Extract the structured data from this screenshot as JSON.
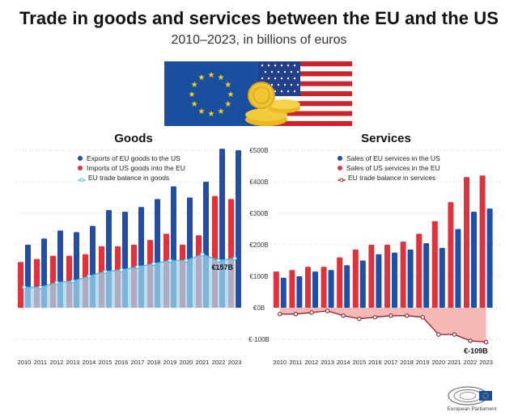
{
  "title": "Trade in goods and services between the EU and the US",
  "subtitle": "2010–2023, in billions of euros",
  "colors": {
    "exports_blue": "#1f4fa8",
    "imports_red": "#e0323c",
    "balance_goods": "#47b8de",
    "balance_services": "#8b1f24",
    "goods_area": "#9fd6ee",
    "services_area": "#f4a0a0"
  },
  "logo": {
    "text": "European Parliament"
  },
  "chart_data": [
    {
      "id": "goods",
      "type": "bar",
      "title": "Goods",
      "categories": [
        "2010",
        "2011",
        "2012",
        "2013",
        "2014",
        "2015",
        "2016",
        "2017",
        "2018",
        "2019",
        "2020",
        "2021",
        "2022",
        "2023"
      ],
      "series": [
        {
          "name": "Exports of EU goods to the US",
          "type": "bar",
          "values": [
            200,
            220,
            245,
            240,
            260,
            310,
            305,
            320,
            345,
            385,
            350,
            400,
            505,
            500
          ]
        },
        {
          "name": "Imports of US goods into the EU",
          "type": "bar",
          "values": [
            145,
            155,
            165,
            165,
            170,
            195,
            195,
            200,
            215,
            235,
            200,
            230,
            355,
            345
          ]
        },
        {
          "name": "EU trade balance in goods",
          "type": "area",
          "values": [
            65,
            65,
            80,
            85,
            100,
            115,
            120,
            130,
            140,
            150,
            150,
            170,
            150,
            157
          ]
        }
      ],
      "ylim": [
        0,
        500
      ],
      "yticks": [
        "€500B",
        "€400B",
        "€300B",
        "€200B",
        "€100B",
        "€0B",
        "€-100B"
      ],
      "annotation": "€157B",
      "legend_position": "top-left",
      "grid": true
    },
    {
      "id": "services",
      "type": "bar",
      "title": "Services",
      "categories": [
        "2010",
        "2011",
        "2012",
        "2013",
        "2014",
        "2015",
        "2016",
        "2017",
        "2018",
        "2019",
        "2020",
        "2021",
        "2022",
        "2023"
      ],
      "series": [
        {
          "name": "Sales of EU services in the US",
          "type": "bar",
          "values": [
            95,
            100,
            115,
            120,
            135,
            150,
            170,
            175,
            185,
            205,
            190,
            250,
            305,
            315
          ]
        },
        {
          "name": "Sales of US services in the EU",
          "type": "bar",
          "values": [
            115,
            120,
            130,
            130,
            160,
            185,
            200,
            200,
            210,
            235,
            275,
            335,
            415,
            420
          ]
        },
        {
          "name": "EU trade balance in services",
          "type": "area",
          "values": [
            -20,
            -20,
            -15,
            -10,
            -25,
            -35,
            -30,
            -25,
            -25,
            -30,
            -85,
            -85,
            -105,
            -109
          ]
        }
      ],
      "ylim": [
        -100,
        500
      ],
      "yticks": [
        "€500B",
        "€400B",
        "€300B",
        "€200B",
        "€100B",
        "€0B",
        "€-100B"
      ],
      "annotation": "€-109B",
      "legend_position": "top-left",
      "grid": true
    }
  ]
}
